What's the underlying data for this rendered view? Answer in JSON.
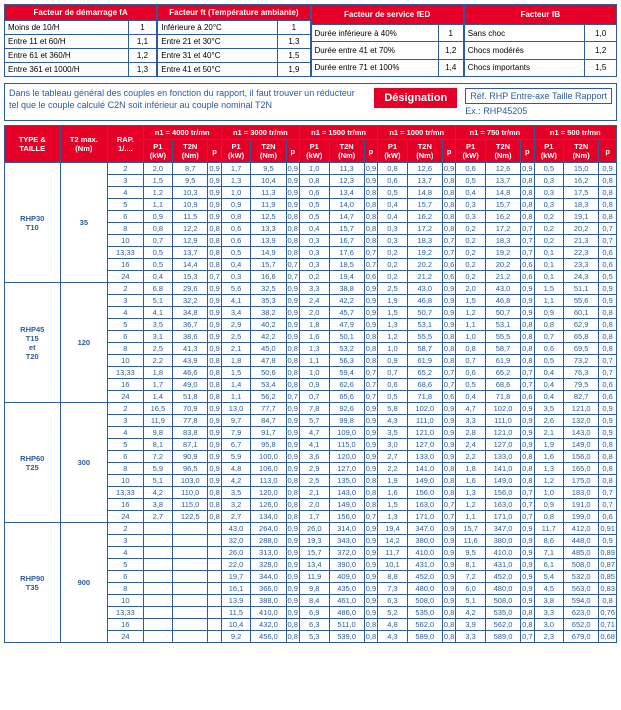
{
  "factor_tables": {
    "fA": {
      "header": "Facteur de démarrage fA",
      "rows": [
        [
          "Moins de 10/H",
          "1"
        ],
        [
          "Entre 11 et 60/H",
          "1,1"
        ],
        [
          "Entre 61 et 360/H",
          "1,2"
        ],
        [
          "Entre 361 et 1000/H",
          "1,3"
        ]
      ]
    },
    "ft": {
      "header": "Facteur ft (Température ambiante)",
      "rows": [
        [
          "Inférieure à 20°C",
          "1"
        ],
        [
          "Entre 21 et 30°C",
          "1,3"
        ],
        [
          "Entre 31 et 40°C",
          "1,5"
        ],
        [
          "Entre 41 et 50°C",
          "1,9"
        ]
      ]
    },
    "fED": {
      "header": "Facteur de service fED",
      "rows": [
        [
          "Durée inférieure à 40%",
          "1"
        ],
        [
          "Durée entre 41 et 70%",
          "1,2"
        ],
        [
          "Durée entre 71 et 100%",
          "1,4"
        ]
      ]
    },
    "fB": {
      "header": "Facteur fB",
      "rows": [
        [
          "Sans choc",
          "1,0"
        ],
        [
          "Chocs modérés",
          "1,2"
        ],
        [
          "Chocs importants",
          "1,5"
        ]
      ]
    }
  },
  "designation": {
    "text": "Dans le tableau général des couples en fonction du rapport, il faut trouver un réducteur tel que le couple calculé C2N soit inférieur au couple nominal T2N",
    "badge": "Désignation",
    "ref_line": "Réf. RHP   Entre-axe   Taille   Rapport",
    "ex": "Ex.: RHP45205"
  },
  "main_headers": {
    "type_taille": "TYPE & TAILLE",
    "t2max": "T2 max. (Nm)",
    "rap": "RAP. 1/....",
    "speeds": [
      "n1 = 4000 tr/mn",
      "n1 = 3000 tr/mn",
      "n1 = 1500 tr/mn",
      "n1 = 1000 tr/mn",
      "n1 = 750 tr/mn",
      "n1 = 500 tr/mn"
    ],
    "p1": "P1 (kW)",
    "t2n": "T2N (Nm)",
    "p": "p"
  },
  "groups": [
    {
      "label": "RHP30 T10",
      "t2max": "35",
      "rows": [
        [
          "2",
          "2,0",
          "8,7",
          "0,9",
          "1,7",
          "9,5",
          "0,9",
          "1,0",
          "11,3",
          "0,9",
          "0,8",
          "12,6",
          "0,9",
          "0,6",
          "12,6",
          "0,9",
          "0,5",
          "15,0",
          "0,9"
        ],
        [
          "3",
          "1,5",
          "9,5",
          "0,9",
          "1,3",
          "10,4",
          "0,9",
          "0,8",
          "12,3",
          "0,9",
          "0,6",
          "13,7",
          "0,8",
          "0,5",
          "13,7",
          "0,8",
          "0,3",
          "16,2",
          "0,8"
        ],
        [
          "4",
          "1,2",
          "10,3",
          "0,9",
          "1,0",
          "11,3",
          "0,9",
          "0,6",
          "13,4",
          "0,8",
          "0,5",
          "14,8",
          "0,8",
          "0,4",
          "14,8",
          "0,8",
          "0,3",
          "17,5",
          "0,8"
        ],
        [
          "5",
          "1,1",
          "10,9",
          "0,9",
          "0,9",
          "11,9",
          "0,9",
          "0,5",
          "14,0",
          "0,8",
          "0,4",
          "15,7",
          "0,8",
          "0,3",
          "15,7",
          "0,8",
          "0,3",
          "18,3",
          "0,8"
        ],
        [
          "6",
          "0,9",
          "11,5",
          "0,9",
          "0,8",
          "12,5",
          "0,8",
          "0,5",
          "14,7",
          "0,8",
          "0,4",
          "16,2",
          "0,8",
          "0,3",
          "16,2",
          "0,8",
          "0,2",
          "19,1",
          "0,8"
        ],
        [
          "8",
          "0,8",
          "12,2",
          "0,8",
          "0,6",
          "13,3",
          "0,8",
          "0,4",
          "15,7",
          "0,8",
          "0,3",
          "17,2",
          "0,8",
          "0,2",
          "17,2",
          "0,7",
          "0,2",
          "20,2",
          "0,7"
        ],
        [
          "10",
          "0,7",
          "12,9",
          "0,8",
          "0,6",
          "13,9",
          "0,8",
          "0,3",
          "16,7",
          "0,8",
          "0,3",
          "18,3",
          "0,7",
          "0,2",
          "18,3",
          "0,7",
          "0,2",
          "21,3",
          "0,7"
        ],
        [
          "13,33",
          "0,5",
          "13,7",
          "0,8",
          "0,5",
          "14,9",
          "0,8",
          "0,3",
          "17,6",
          "0,7",
          "0,2",
          "19,2",
          "0,7",
          "0,2",
          "19,2",
          "0,7",
          "0,1",
          "22,3",
          "0,6"
        ],
        [
          "16",
          "0,5",
          "14,4",
          "0,8",
          "0,4",
          "15,7",
          "0,7",
          "0,3",
          "18,5",
          "0,7",
          "0,2",
          "20,2",
          "0,6",
          "0,2",
          "20,2",
          "0,6",
          "0,1",
          "23,3",
          "0,6"
        ],
        [
          "24",
          "0,4",
          "15,3",
          "0,7",
          "0,3",
          "16,6",
          "0,7",
          "0,2",
          "19,4",
          "0,6",
          "0,2",
          "21,2",
          "0,6",
          "0,2",
          "21,2",
          "0,6",
          "0,1",
          "24,3",
          "0,5"
        ]
      ]
    },
    {
      "label": "RHP45 T15 et T20",
      "t2max": "120",
      "rows": [
        [
          "2",
          "6,8",
          "29,6",
          "0,9",
          "5,6",
          "32,5",
          "0,9",
          "3,3",
          "38,8",
          "0,9",
          "2,5",
          "43,0",
          "0,9",
          "2,0",
          "43,0",
          "0,9",
          "1,5",
          "51,1",
          "0,9"
        ],
        [
          "3",
          "5,1",
          "32,2",
          "0,9",
          "4,1",
          "35,3",
          "0,9",
          "2,4",
          "42,2",
          "0,9",
          "1,9",
          "46,8",
          "0,9",
          "1,5",
          "46,8",
          "0,9",
          "1,1",
          "55,6",
          "0,9"
        ],
        [
          "4",
          "4,1",
          "34,8",
          "0,9",
          "3,4",
          "38,2",
          "0,9",
          "2,0",
          "45,7",
          "0,9",
          "1,5",
          "50,7",
          "0,9",
          "1,2",
          "50,7",
          "0,9",
          "0,9",
          "60,1",
          "0,8"
        ],
        [
          "5",
          "3,5",
          "36,7",
          "0,9",
          "2,9",
          "40,2",
          "0,9",
          "1,8",
          "47,9",
          "0,9",
          "1,3",
          "53,1",
          "0,9",
          "1,1",
          "53,1",
          "0,8",
          "0,8",
          "62,9",
          "0,8"
        ],
        [
          "6",
          "3,1",
          "38,6",
          "0,9",
          "2,5",
          "42,2",
          "0,9",
          "1,6",
          "50,1",
          "0,8",
          "1,2",
          "55,5",
          "0,8",
          "1,0",
          "55,5",
          "0,8",
          "0,7",
          "65,8",
          "0,8"
        ],
        [
          "8",
          "2,5",
          "41,3",
          "0,9",
          "2,1",
          "45,0",
          "0,8",
          "1,3",
          "53,2",
          "0,8",
          "1,0",
          "58,7",
          "0,8",
          "0,8",
          "58,7",
          "0,8",
          "0,6",
          "69,5",
          "0,8"
        ],
        [
          "10",
          "2,2",
          "43,9",
          "0,8",
          "1,8",
          "47,8",
          "0,8",
          "1,1",
          "56,3",
          "0,8",
          "0,9",
          "61,9",
          "0,8",
          "0,7",
          "61,9",
          "0,8",
          "0,5",
          "73,2",
          "0,7"
        ],
        [
          "13,33",
          "1,8",
          "46,6",
          "0,8",
          "1,5",
          "50,6",
          "0,8",
          "1,0",
          "59,4",
          "0,7",
          "0,7",
          "65,2",
          "0,7",
          "0,6",
          "65,2",
          "0,7",
          "0,4",
          "76,3",
          "0,7"
        ],
        [
          "16",
          "1,7",
          "49,0",
          "0,8",
          "1,4",
          "53,4",
          "0,8",
          "0,9",
          "62,6",
          "0,7",
          "0,6",
          "68,6",
          "0,7",
          "0,5",
          "68,6",
          "0,7",
          "0,4",
          "79,5",
          "0,6"
        ],
        [
          "24",
          "1,4",
          "51,8",
          "0,8",
          "1,1",
          "56,2",
          "0,7",
          "0,7",
          "65,6",
          "0,7",
          "0,5",
          "71,8",
          "0,6",
          "0,4",
          "71,8",
          "0,6",
          "0,4",
          "82,7",
          "0,6"
        ]
      ]
    },
    {
      "label": "RHP60 T25",
      "t2max": "300",
      "rows": [
        [
          "2",
          "16,5",
          "70,9",
          "0,9",
          "13,0",
          "77,7",
          "0,9",
          "7,8",
          "92,6",
          "0,9",
          "5,8",
          "102,0",
          "0,9",
          "4,7",
          "102,0",
          "0,9",
          "3,5",
          "121,0",
          "0,9"
        ],
        [
          "3",
          "11,9",
          "77,8",
          "0,9",
          "9,7",
          "84,7",
          "0,9",
          "5,7",
          "99,8",
          "0,9",
          "4,3",
          "111,0",
          "0,9",
          "3,3",
          "111,0",
          "0,9",
          "2,6",
          "132,0",
          "0,9"
        ],
        [
          "4",
          "9,8",
          "83,8",
          "0,9",
          "7,9",
          "91,7",
          "0,9",
          "4,7",
          "109,0",
          "0,9",
          "3,5",
          "121,0",
          "0,9",
          "2,8",
          "121,0",
          "0,9",
          "2,1",
          "143,0",
          "0,9"
        ],
        [
          "5",
          "8,1",
          "87,1",
          "0,9",
          "6,7",
          "95,8",
          "0,9",
          "4,1",
          "115,0",
          "0,9",
          "3,0",
          "127,0",
          "0,9",
          "2,4",
          "127,0",
          "0,9",
          "1,9",
          "149,0",
          "0,8"
        ],
        [
          "6",
          "7,2",
          "90,9",
          "0,9",
          "5,9",
          "100,0",
          "0,9",
          "3,6",
          "120,0",
          "0,9",
          "2,7",
          "133,0",
          "0,9",
          "2,2",
          "133,0",
          "0,8",
          "1,6",
          "156,0",
          "0,8"
        ],
        [
          "8",
          "5,9",
          "96,5",
          "0,9",
          "4,8",
          "106,0",
          "0,9",
          "2,9",
          "127,0",
          "0,9",
          "2,2",
          "141,0",
          "0,8",
          "1,8",
          "141,0",
          "0,8",
          "1,3",
          "165,0",
          "0,8"
        ],
        [
          "10",
          "5,1",
          "103,0",
          "0,9",
          "4,2",
          "113,0",
          "0,8",
          "2,5",
          "135,0",
          "0,8",
          "1,9",
          "149,0",
          "0,8",
          "1,6",
          "149,0",
          "0,8",
          "1,2",
          "175,0",
          "0,8"
        ],
        [
          "13,33",
          "4,2",
          "110,0",
          "0,8",
          "3,5",
          "120,0",
          "0,8",
          "2,1",
          "143,0",
          "0,8",
          "1,6",
          "156,0",
          "0,8",
          "1,3",
          "156,0",
          "0,7",
          "1,0",
          "183,0",
          "0,7"
        ],
        [
          "16",
          "3,8",
          "115,0",
          "0,8",
          "3,2",
          "126,0",
          "0,8",
          "2,0",
          "149,0",
          "0,8",
          "1,5",
          "163,0",
          "0,7",
          "1,2",
          "163,0",
          "0,7",
          "0,9",
          "191,0",
          "0,7"
        ],
        [
          "24",
          "2,7",
          "122,5",
          "0,8",
          "2,7",
          "134,0",
          "0,8",
          "1,7",
          "156,0",
          "0,7",
          "1,3",
          "171,0",
          "0,7",
          "1,1",
          "171,0",
          "0,7",
          "0,8",
          "199,0",
          "0,6"
        ]
      ]
    },
    {
      "label": "RHP90 T35",
      "t2max": "900",
      "rows": [
        [
          "2",
          "",
          "",
          "",
          "43,0",
          "264,0",
          "0,9",
          "26,0",
          "314,0",
          "0,9",
          "19,4",
          "347,0",
          "0,9",
          "15,7",
          "347,0",
          "0,9",
          "11,7",
          "412,0",
          "0,91"
        ],
        [
          "3",
          "",
          "",
          "",
          "32,0",
          "288,0",
          "0,9",
          "19,3",
          "343,0",
          "0,9",
          "14,2",
          "380,0",
          "0,9",
          "11,6",
          "380,0",
          "0,9",
          "8,6",
          "448,0",
          "0,9"
        ],
        [
          "4",
          "",
          "",
          "",
          "26,0",
          "313,0",
          "0,9",
          "15,7",
          "372,0",
          "0,9",
          "11,7",
          "410,0",
          "0,9",
          "9,5",
          "410,0",
          "0,9",
          "7,1",
          "485,0",
          "0,89"
        ],
        [
          "5",
          "",
          "",
          "",
          "22,0",
          "328,0",
          "0,9",
          "13,4",
          "390,0",
          "0,9",
          "10,1",
          "431,0",
          "0,9",
          "8,1",
          "431,0",
          "0,9",
          "6,1",
          "508,0",
          "0,87"
        ],
        [
          "6",
          "",
          "",
          "",
          "19,7",
          "344,0",
          "0,9",
          "11,9",
          "409,0",
          "0,9",
          "8,8",
          "452,0",
          "0,9",
          "7,2",
          "452,0",
          "0,9",
          "5,4",
          "532,0",
          "0,85"
        ],
        [
          "8",
          "",
          "",
          "",
          "16,1",
          "366,0",
          "0,9",
          "9,8",
          "435,0",
          "0,9",
          "7,3",
          "480,0",
          "0,9",
          "6,0",
          "480,0",
          "0,9",
          "4,5",
          "563,0",
          "0,83"
        ],
        [
          "10",
          "",
          "",
          "",
          "13,9",
          "388,0",
          "0,9",
          "8,4",
          "461,0",
          "0,9",
          "6,3",
          "508,0",
          "0,9",
          "5,1",
          "508,0",
          "0,9",
          "3,8",
          "594,0",
          "0,8"
        ],
        [
          "13,33",
          "",
          "",
          "",
          "11,5",
          "410,0",
          "0,9",
          "6,9",
          "486,0",
          "0,9",
          "5,2",
          "535,0",
          "0,8",
          "4,2",
          "535,0",
          "0,8",
          "3,3",
          "623,0",
          "0,76"
        ],
        [
          "16",
          "",
          "",
          "",
          "10,4",
          "432,0",
          "0,8",
          "6,3",
          "511,0",
          "0,8",
          "4,8",
          "562,0",
          "0,8",
          "3,9",
          "562,0",
          "0,8",
          "3,0",
          "652,0",
          "0,71"
        ],
        [
          "24",
          "",
          "",
          "",
          "9,2",
          "456,0",
          "0,8",
          "5,3",
          "539,0",
          "0,8",
          "4,3",
          "589,0",
          "0,8",
          "3,3",
          "589,0",
          "0,7",
          "2,3",
          "679,0",
          "0,68"
        ]
      ]
    }
  ]
}
